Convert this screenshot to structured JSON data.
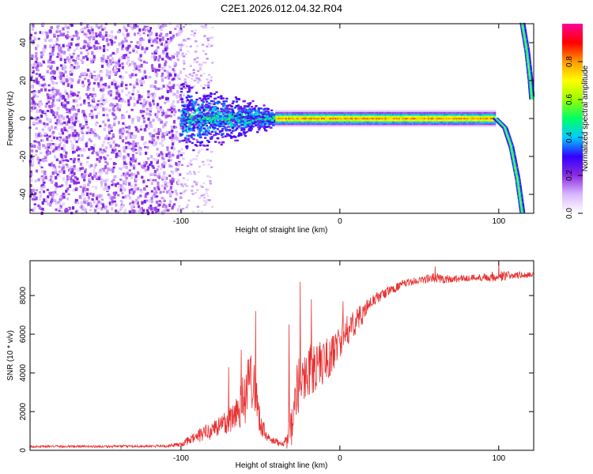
{
  "title": "C2E1.2026.012.04.32.R04",
  "chart_data": [
    {
      "type": "heatmap",
      "title": "C2E1.2026.012.04.32.R04",
      "xlabel": "Height of straight line (km)",
      "ylabel": "Frequency (Hz)",
      "xlim": [
        -195,
        122
      ],
      "ylim": [
        -50,
        50
      ],
      "xticks": [
        -100,
        0,
        100
      ],
      "yticks": [
        -40,
        -20,
        0,
        20,
        40
      ],
      "colorbar": {
        "label": "Normalized spectral amplitude",
        "range": [
          0,
          1
        ],
        "ticks": [
          0.0,
          0.2,
          0.4,
          0.6,
          0.8
        ],
        "tick_labels": [
          "0.0",
          "0.2",
          "0.4",
          "0.6",
          "0.8"
        ],
        "colors": [
          "#ffffff",
          "#d9b8ff",
          "#8a2be2",
          "#3300ff",
          "#00ccff",
          "#00ff66",
          "#99ff00",
          "#ffff00",
          "#ff9900",
          "#ff0000",
          "#ff0099"
        ]
      },
      "features": {
        "noise_region_x": [
          -195,
          -100
        ],
        "transition_x": [
          -100,
          -40
        ],
        "ridge_x": [
          -40,
          98
        ],
        "ridge_frequency_hz": 0,
        "ridge_amplitude": 0.85,
        "curve_down": {
          "x": [
            98,
            104,
            108,
            112,
            115
          ],
          "freq": [
            0,
            -5,
            -15,
            -32,
            -50
          ]
        },
        "curve_up": {
          "x": [
            115,
            118,
            120,
            121
          ],
          "freq": [
            50,
            35,
            20,
            10
          ]
        }
      }
    },
    {
      "type": "line",
      "xlabel": "Height of straight line (km)",
      "ylabel": "SNR (10 * v/v)",
      "xlim": [
        -195,
        122
      ],
      "ylim": [
        0,
        9800
      ],
      "xticks": [
        -100,
        0,
        100
      ],
      "yticks": [
        0,
        2000,
        4000,
        6000,
        8000
      ],
      "line_color": "#e83030",
      "series": [
        {
          "name": "SNR",
          "x": [
            -195,
            -150,
            -110,
            -100,
            -90,
            -80,
            -70,
            -60,
            -55,
            -50,
            -45,
            -40,
            -35,
            -30,
            -28,
            -25,
            -20,
            -15,
            -10,
            -5,
            0,
            5,
            10,
            15,
            20,
            30,
            40,
            50,
            60,
            70,
            80,
            90,
            100,
            110,
            122
          ],
          "values": [
            200,
            200,
            220,
            300,
            700,
            1100,
            1500,
            2700,
            4000,
            1400,
            600,
            400,
            400,
            1000,
            2800,
            3600,
            4100,
            4300,
            4600,
            4900,
            5700,
            6200,
            6700,
            7100,
            7700,
            8200,
            8600,
            8800,
            8900,
            8850,
            8900,
            8950,
            9000,
            9050,
            9050
          ],
          "noise": [
            60,
            60,
            70,
            120,
            350,
            500,
            700,
            1500,
            1800,
            600,
            250,
            200,
            200,
            1200,
            1500,
            1400,
            1400,
            1300,
            1200,
            1000,
            900,
            800,
            700,
            500,
            350,
            250,
            200,
            180,
            300,
            200,
            180,
            200,
            300,
            200,
            150
          ],
          "spikes": [
            [
              -70,
              4300
            ],
            [
              -62,
              5200
            ],
            [
              -53,
              7200
            ],
            [
              -32,
              6500
            ],
            [
              -25,
              8700
            ],
            [
              -18,
              7800
            ],
            [
              2,
              7700
            ],
            [
              60,
              9500
            ],
            [
              100,
              9700
            ],
            [
              104,
              8800
            ]
          ]
        }
      ]
    }
  ]
}
